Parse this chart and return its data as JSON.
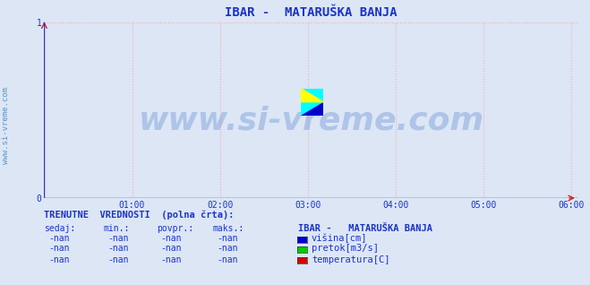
{
  "title": "IBAR -  MATARUŠKA BANJA",
  "title_color": "#1a33cc",
  "title_fontsize": 10,
  "bg_color": "#dce6f5",
  "plot_bg_color": "#dce6f5",
  "xlim": [
    0,
    6.08
  ],
  "ylim": [
    0,
    1.0
  ],
  "xticks": [
    1,
    2,
    3,
    4,
    5,
    6
  ],
  "xtick_labels": [
    "01:00",
    "02:00",
    "03:00",
    "04:00",
    "05:00",
    "06:00"
  ],
  "yticks": [
    0,
    1
  ],
  "ytick_labels": [
    "0",
    "1"
  ],
  "grid_color": "#ffaaaa",
  "axis_line_color": "#3333bb",
  "arrow_color": "#cc2222",
  "watermark_text": "www.si-vreme.com",
  "watermark_color": "#4477cc",
  "watermark_alpha": 0.3,
  "watermark_fontsize": 26,
  "side_label": "www.si-vreme.com",
  "side_label_color": "#4488bb",
  "side_label_fontsize": 6.5,
  "legend_title": "IBAR -   MATARUŠKA BANJA",
  "legend_items": [
    {
      "label": "višina[cm]",
      "color": "#0000dd"
    },
    {
      "label": "pretok[m3/s]",
      "color": "#00cc00"
    },
    {
      "label": "temperatura[C]",
      "color": "#dd0000"
    }
  ],
  "table_header": "TRENUTNE  VREDNOSTI  (polna črta):",
  "table_col_labels": [
    "sedaj:",
    "min.:",
    "povpr.:",
    "maks.:"
  ],
  "table_color": "#1a33cc",
  "text_color": "#1a33cc"
}
